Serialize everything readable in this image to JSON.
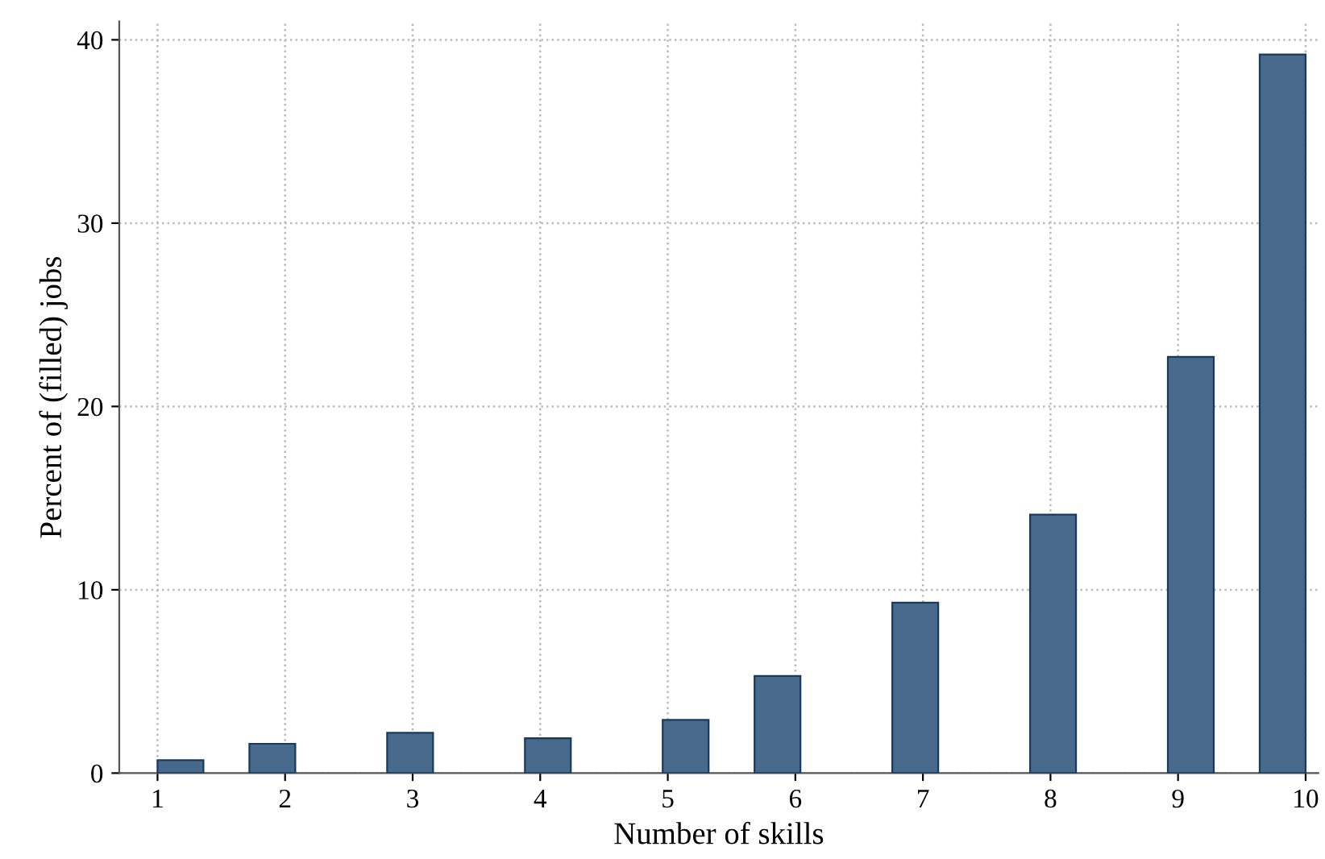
{
  "chart_data": {
    "type": "histogram",
    "xlabel": "Number of skills",
    "ylabel": "Percent of (filled) jobs",
    "bins": [
      1,
      1.36,
      1.72,
      2.08,
      2.44,
      2.8,
      3.16,
      3.52,
      3.88,
      4.24,
      4.6,
      4.96,
      5.32,
      5.68,
      6.04,
      6.4,
      6.76,
      7.12,
      7.48,
      7.84,
      8.2,
      8.56,
      8.92,
      9.28,
      9.64,
      10
    ],
    "values": [
      0.7,
      0,
      1.6,
      0,
      0,
      2.2,
      0,
      0,
      1.9,
      0,
      0,
      2.9,
      0,
      5.3,
      0,
      0,
      9.3,
      0,
      0,
      14.1,
      0,
      0,
      22.7,
      0,
      39.2
    ],
    "color": "#46698c",
    "xlim": [
      0.7,
      10.1
    ],
    "ylim": [
      0,
      41
    ],
    "xticks": [
      1,
      2,
      3,
      4,
      5,
      6,
      7,
      8,
      9,
      10
    ],
    "yticks": [
      0,
      10,
      20,
      30,
      40
    ],
    "grid": true
  }
}
